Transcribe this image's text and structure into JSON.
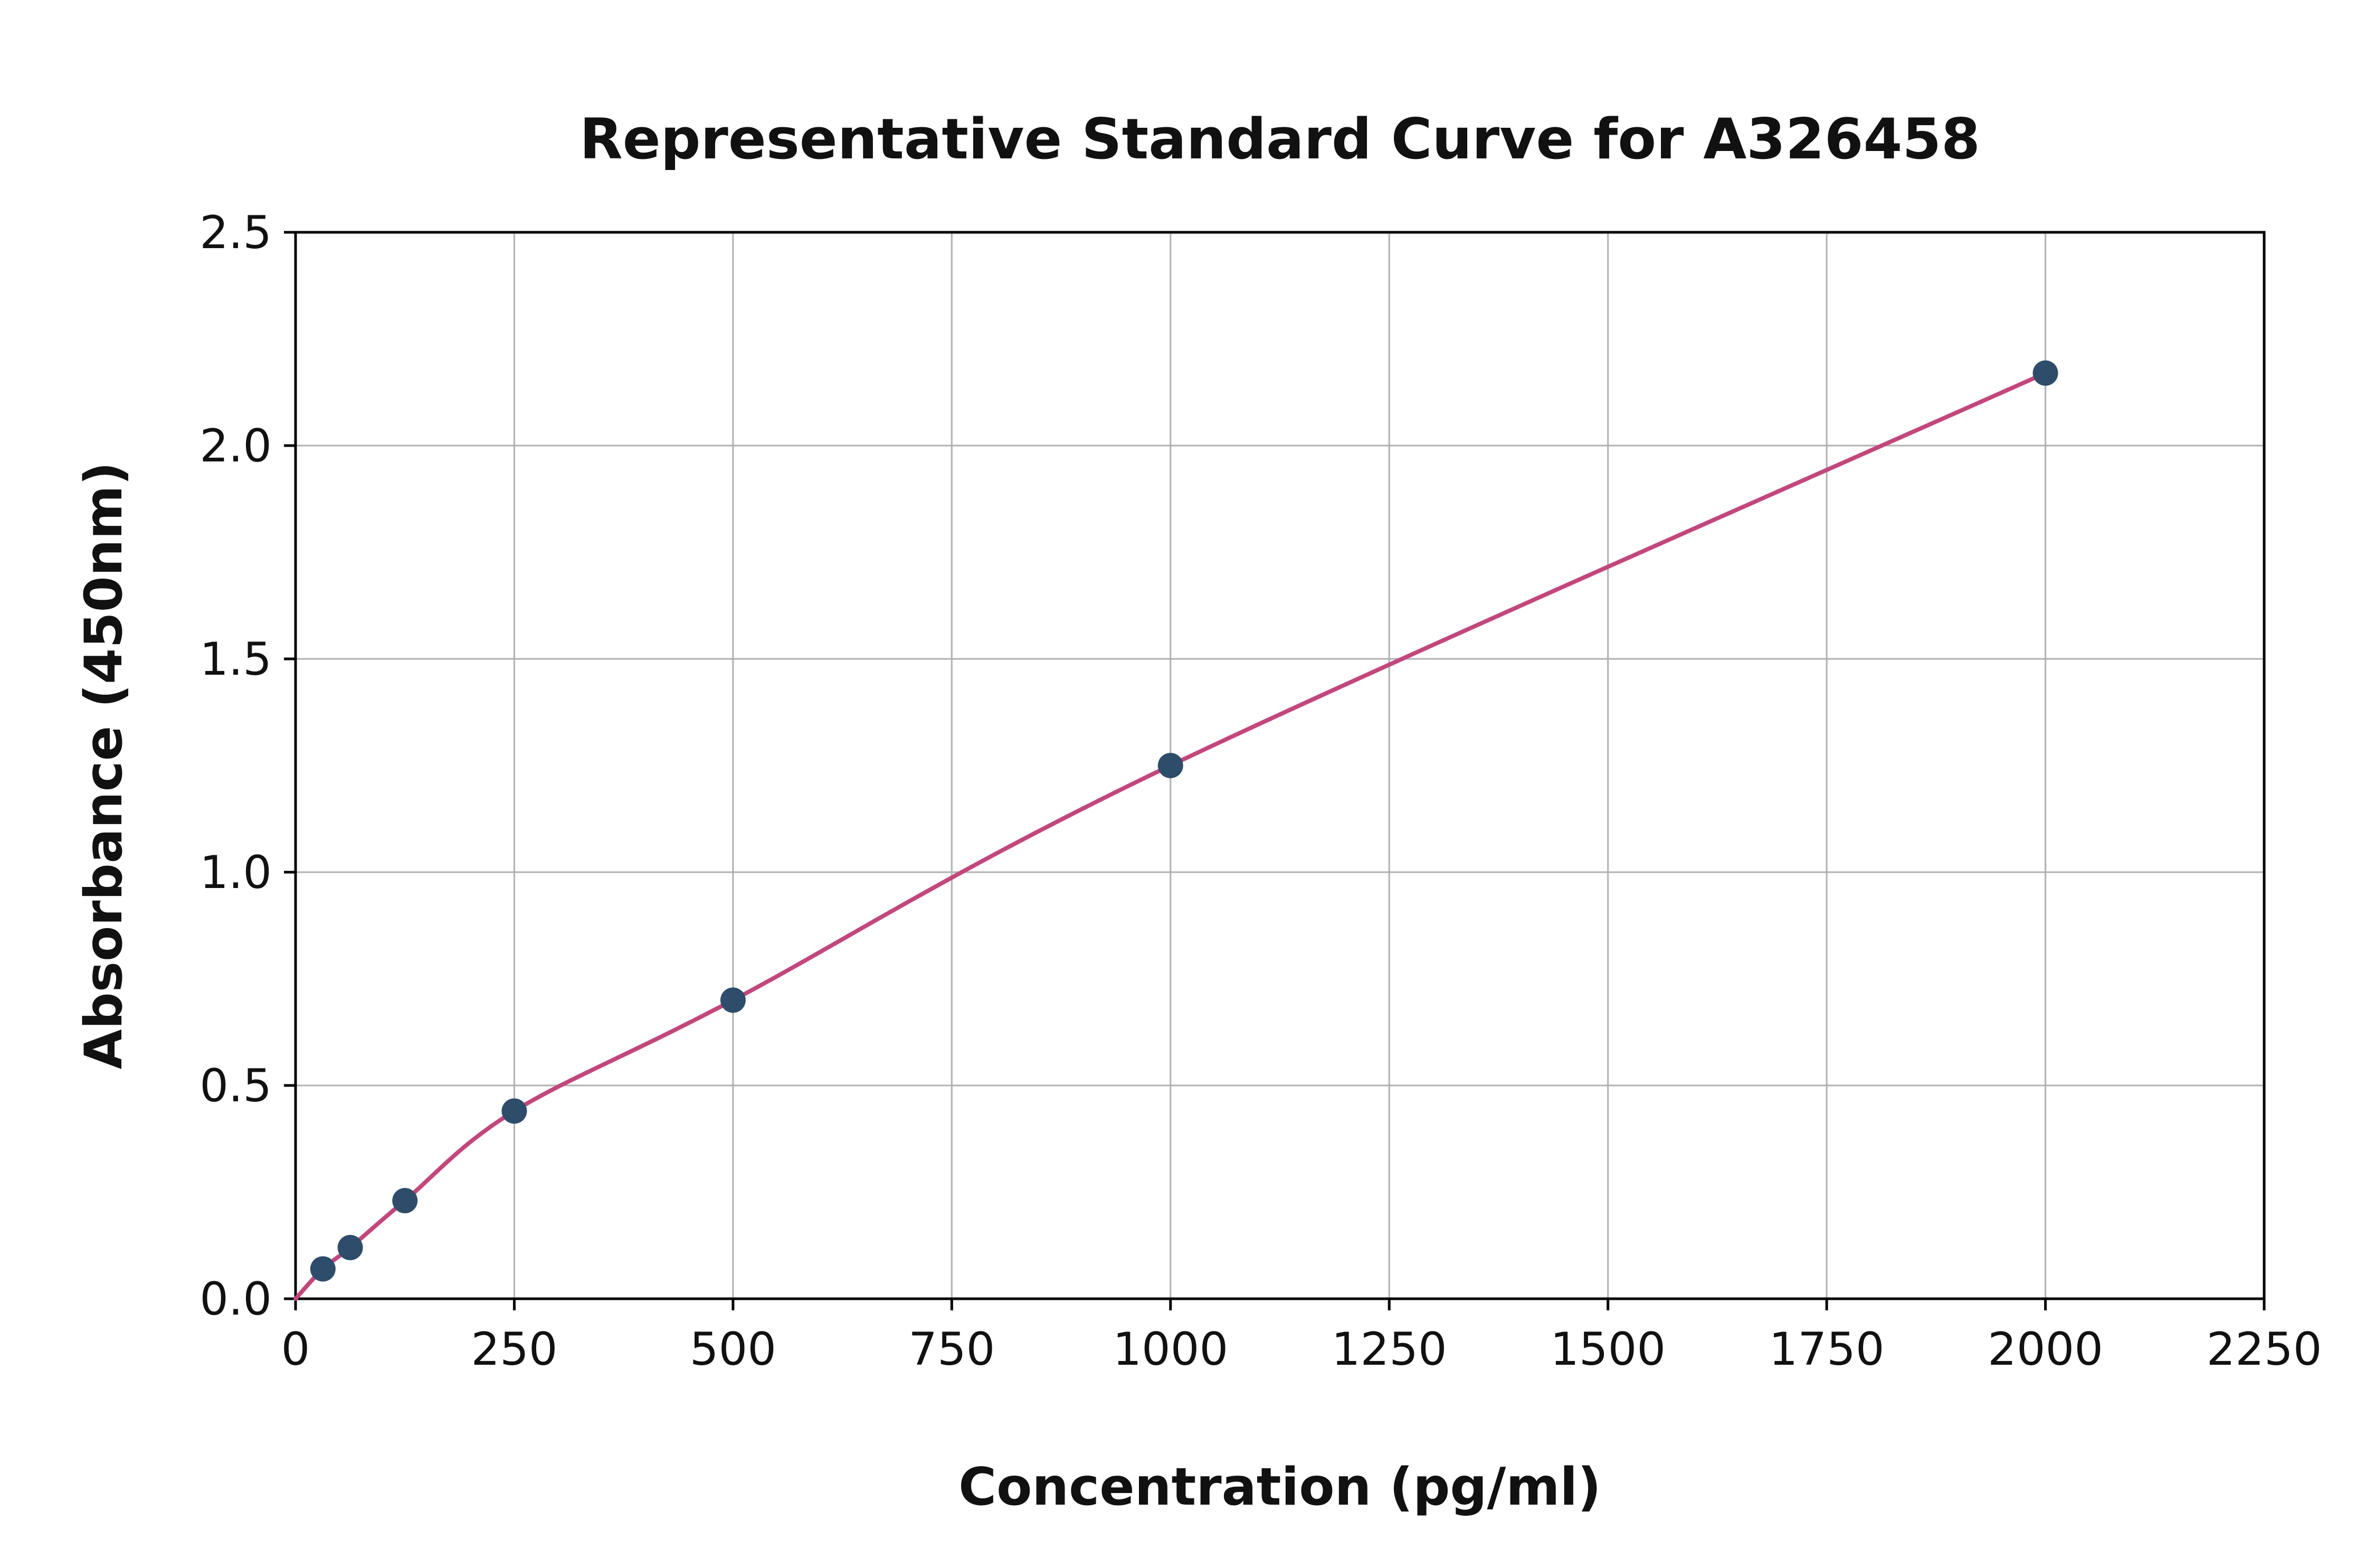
{
  "chart_data": {
    "type": "scatter",
    "title": "Representative Standard Curve for A326458",
    "xlabel": "Concentration (pg/ml)",
    "ylabel": "Absorbance (450nm)",
    "xlim": [
      0,
      2250
    ],
    "ylim": [
      0,
      2.5
    ],
    "xticks": [
      0,
      250,
      500,
      750,
      1000,
      1250,
      1500,
      1750,
      2000,
      2250
    ],
    "yticks": [
      0,
      0.5,
      1,
      1.5,
      2,
      2.5
    ],
    "xtick_labels": [
      "0",
      "250",
      "500",
      "750",
      "1000",
      "1250",
      "1500",
      "1750",
      "2000",
      "2250"
    ],
    "ytick_labels": [
      "0.0",
      "0.5",
      "1.0",
      "1.5",
      "2.0",
      "2.5"
    ],
    "grid": true,
    "legend": "none",
    "colors": {
      "marker": "#2e4d6b",
      "curve": "#c2477c",
      "grid": "#b0b0b0",
      "spine": "#000000",
      "background": "#ffffff"
    },
    "series": [
      {
        "name": "standard-points",
        "type": "scatter",
        "x": [
          31.25,
          62.5,
          125,
          250,
          500,
          1000,
          2000
        ],
        "y": [
          0.07,
          0.12,
          0.23,
          0.44,
          0.7,
          1.25,
          2.17
        ]
      },
      {
        "name": "fit-curve",
        "type": "line",
        "x": [
          0,
          31.25,
          62.5,
          125,
          250,
          500,
          1000,
          2000
        ],
        "y": [
          0.0,
          0.07,
          0.12,
          0.23,
          0.44,
          0.7,
          1.25,
          2.17
        ]
      }
    ]
  }
}
